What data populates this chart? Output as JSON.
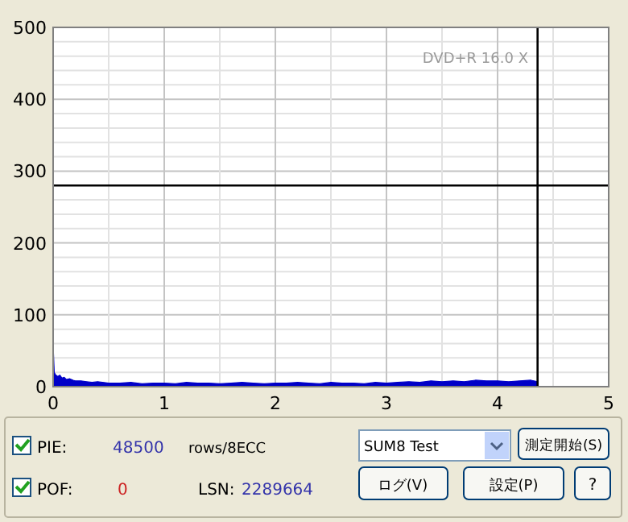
{
  "chart_data": {
    "type": "area",
    "x": [
      0,
      0.01,
      0.02,
      0.04,
      0.06,
      0.08,
      0.1,
      0.12,
      0.15,
      0.18,
      0.2,
      0.25,
      0.3,
      0.35,
      0.4,
      0.5,
      0.6,
      0.7,
      0.8,
      0.9,
      1.0,
      1.1,
      1.2,
      1.3,
      1.4,
      1.5,
      1.6,
      1.7,
      1.8,
      1.9,
      2.0,
      2.1,
      2.2,
      2.3,
      2.4,
      2.5,
      2.6,
      2.7,
      2.8,
      2.9,
      3.0,
      3.1,
      3.2,
      3.3,
      3.4,
      3.5,
      3.6,
      3.7,
      3.8,
      3.9,
      4.0,
      4.1,
      4.2,
      4.3,
      4.36
    ],
    "series": [
      {
        "color": "#0000c8",
        "values": [
          58,
          20,
          17,
          14,
          16,
          12,
          13,
          10,
          11,
          9,
          8,
          8,
          7,
          6,
          7,
          5,
          5,
          6,
          4,
          5,
          5,
          4,
          6,
          5,
          5,
          4,
          5,
          6,
          5,
          4,
          5,
          5,
          6,
          5,
          4,
          6,
          5,
          5,
          4,
          6,
          5,
          6,
          7,
          6,
          8,
          7,
          8,
          7,
          9,
          8,
          8,
          7,
          8,
          9,
          7
        ]
      }
    ],
    "xlim": [
      0,
      5
    ],
    "ylim": [
      0,
      500
    ],
    "xticks": [
      0,
      {
        "value": 0.5,
        "label": null
      },
      1,
      {
        "value": 1.5,
        "label": null
      },
      2,
      {
        "value": 2.5,
        "label": null
      },
      3,
      {
        "value": 3.5,
        "label": null
      },
      4,
      {
        "value": 4.5,
        "label": null
      },
      5
    ],
    "yticks": [
      0,
      {
        "value": 20,
        "label": null
      },
      {
        "value": 40,
        "label": null
      },
      {
        "value": 60,
        "label": null
      },
      {
        "value": 80,
        "label": null
      },
      100,
      {
        "value": 120,
        "label": null
      },
      {
        "value": 140,
        "label": null
      },
      {
        "value": 160,
        "label": null
      },
      {
        "value": 180,
        "label": null
      },
      200,
      {
        "value": 220,
        "label": null
      },
      {
        "value": 240,
        "label": null
      },
      {
        "value": 260,
        "label": null
      },
      {
        "value": 280,
        "label": null
      },
      300,
      {
        "value": 320,
        "label": null
      },
      {
        "value": 340,
        "label": null
      },
      {
        "value": 360,
        "label": null
      },
      {
        "value": 380,
        "label": null
      },
      400,
      {
        "value": 420,
        "label": null
      },
      {
        "value": 440,
        "label": null
      },
      {
        "value": 460,
        "label": null
      },
      {
        "value": 480,
        "label": null
      },
      500
    ],
    "grid": true,
    "ref_lines": [
      {
        "axis": "y",
        "value": 280,
        "color": "#000000"
      },
      {
        "axis": "x",
        "value": 4.36,
        "color": "#000000"
      }
    ],
    "annotations": [
      "DVD+R 16.0 X",
      "PIE:",
      "48500",
      "rows/8ECC",
      "POF:",
      "0",
      "LSN:",
      "2289664",
      "SUM8 Test",
      "測定開始(S)",
      "ログ(V)",
      "設定(P)",
      "?"
    ]
  }
}
